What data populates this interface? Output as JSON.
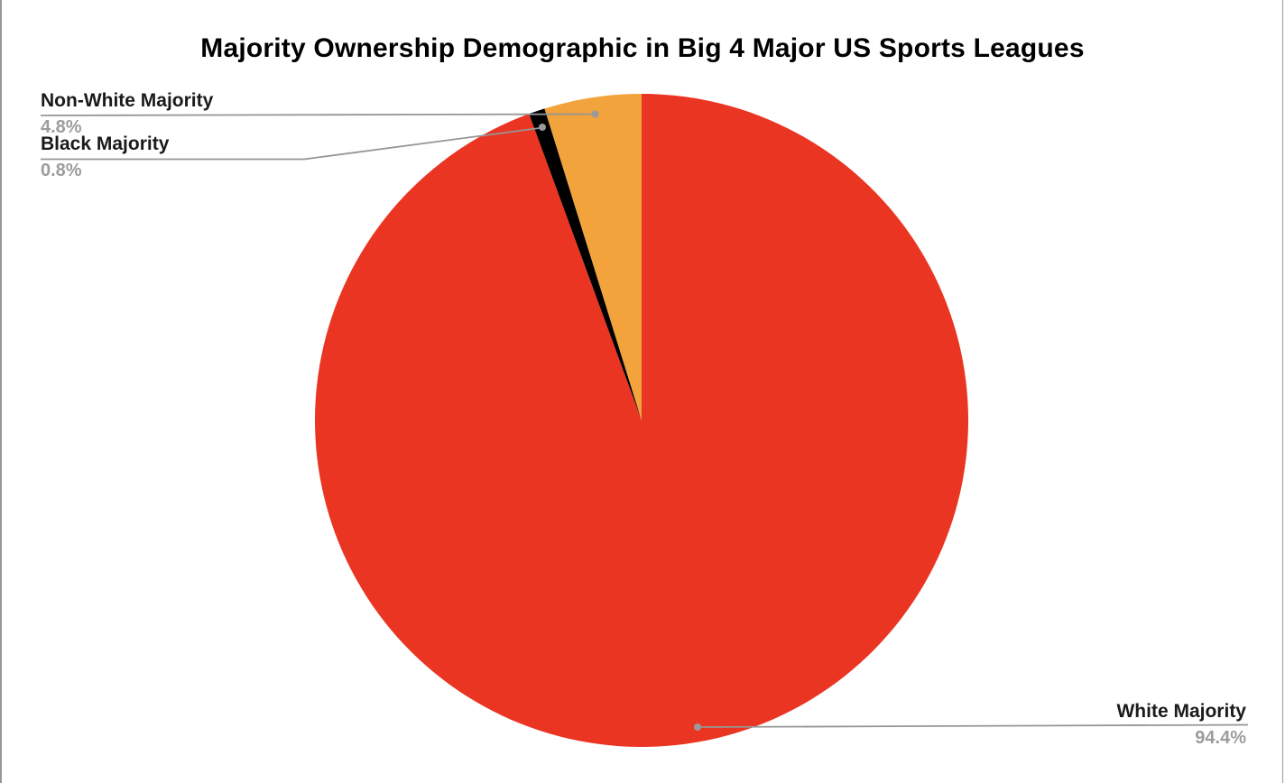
{
  "chart_data": {
    "type": "pie",
    "title": "Majority Ownership Demographic in Big 4 Major US Sports Leagues",
    "unit": "%",
    "direction": "clockwise",
    "start_angle_deg": 0,
    "legend_position": "none",
    "label_style": "callout-leader-lines",
    "slices": [
      {
        "label": "White Majority",
        "value": 94.4,
        "display": "94.4%",
        "color": "#EA3523"
      },
      {
        "label": "Black Majority",
        "value": 0.8,
        "display": "0.8%",
        "color": "#000000"
      },
      {
        "label": "Non-White Majority",
        "value": 4.8,
        "display": "4.8%",
        "color": "#F2A33C"
      }
    ]
  },
  "colors": {
    "background": "#FFFFFF",
    "title_text": "#000000",
    "label_text": "#1A1A1A",
    "percent_text": "#9C9C9C",
    "leader_line": "#969696",
    "leader_dot": "#9A9A9A",
    "screen_edge": "#989898"
  }
}
